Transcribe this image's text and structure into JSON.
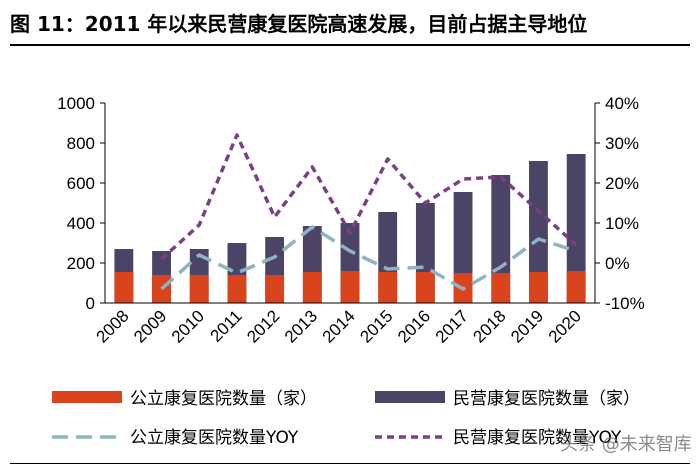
{
  "figure": {
    "title": "图 11：2011 年以来民营康复医院高速发展，目前占据主导地位",
    "watermark": "头条 @未来智库"
  },
  "colors": {
    "public_bar": "#D9441C",
    "private_bar": "#4C4466",
    "public_yoy": "#8EB3C2",
    "private_yoy": "#7B3F86",
    "axis": "#000000"
  },
  "chart_data": {
    "type": "bar",
    "categories": [
      "2008",
      "2009",
      "2010",
      "2011",
      "2012",
      "2013",
      "2014",
      "2015",
      "2016",
      "2017",
      "2018",
      "2019",
      "2020"
    ],
    "series": [
      {
        "name": "公立康复医院数量（家）",
        "kind": "bar",
        "axis": "left",
        "color_key": "public_bar",
        "values": [
          155,
          140,
          140,
          140,
          140,
          155,
          160,
          155,
          155,
          150,
          150,
          155,
          160
        ]
      },
      {
        "name": "民营康复医院数量（家）",
        "kind": "bar",
        "axis": "left",
        "color_key": "private_bar",
        "values": [
          270,
          260,
          270,
          300,
          330,
          385,
          400,
          455,
          500,
          555,
          640,
          710,
          745
        ]
      },
      {
        "name": "公立康复医院数量YOY",
        "kind": "line",
        "style": "dashed",
        "axis": "right",
        "color_key": "public_yoy",
        "values": [
          null,
          -6.5,
          2,
          -2.5,
          1.5,
          9,
          3,
          -1.5,
          -1,
          -6.5,
          -1,
          6,
          3
        ]
      },
      {
        "name": "民营康复医院数量YOY",
        "kind": "line",
        "style": "dotted",
        "axis": "right",
        "color_key": "private_yoy",
        "values": [
          null,
          1,
          9.5,
          32,
          11.5,
          24,
          7.5,
          26,
          15,
          21,
          21.5,
          13,
          4.5
        ]
      }
    ],
    "y_left": {
      "min": 0,
      "max": 1000,
      "ticks": [
        "0",
        "200",
        "400",
        "600",
        "800",
        "1000"
      ]
    },
    "y_right": {
      "min": -10,
      "max": 40,
      "ticks": [
        "-10%",
        "0%",
        "10%",
        "20%",
        "30%",
        "40%"
      ]
    },
    "legend_position": "bottom",
    "grid": false
  }
}
